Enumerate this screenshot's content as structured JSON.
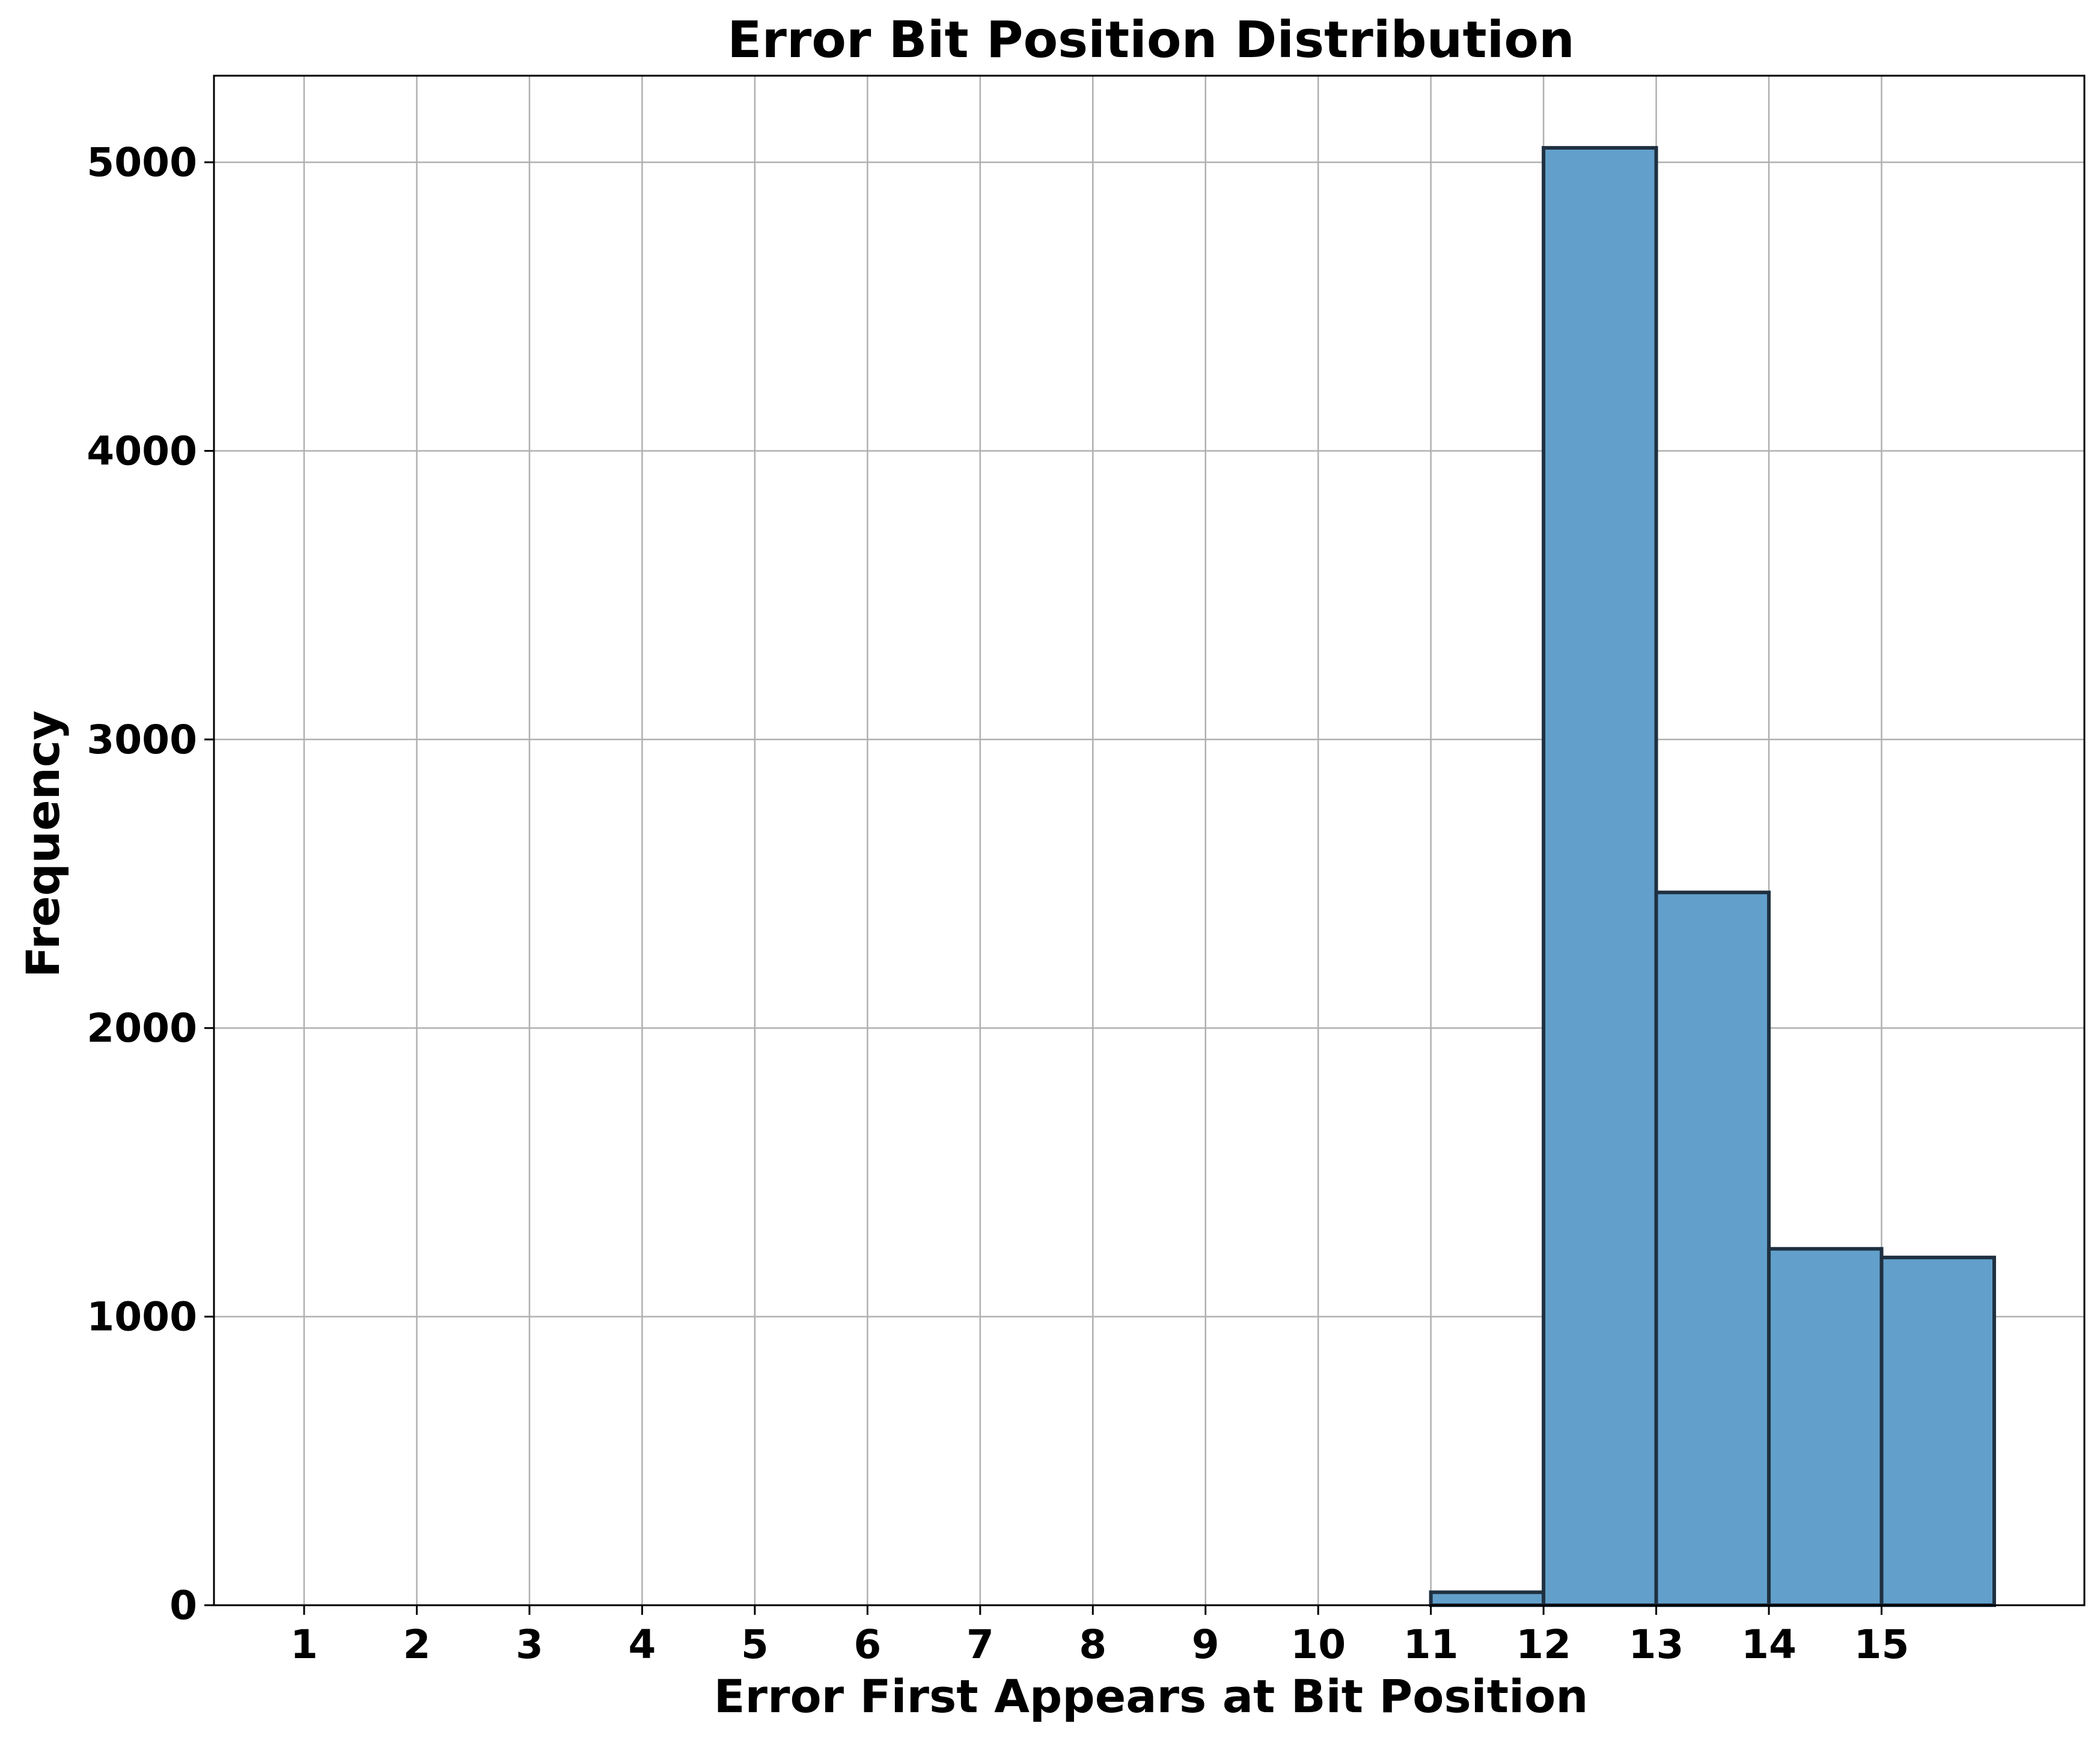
{
  "chart_data": {
    "type": "bar",
    "title": "Error Bit Position Distribution",
    "xlabel": "Error First Appears at Bit Position",
    "ylabel": "Frequency",
    "xlim": [
      0.2,
      16.8
    ],
    "ylim": [
      0,
      5300
    ],
    "x_ticks": [
      1,
      2,
      3,
      4,
      5,
      6,
      7,
      8,
      9,
      10,
      11,
      12,
      13,
      14,
      15
    ],
    "y_ticks": [
      0,
      1000,
      2000,
      3000,
      4000,
      5000
    ],
    "bins": [
      {
        "left": 1,
        "right": 2,
        "value": 0
      },
      {
        "left": 2,
        "right": 3,
        "value": 0
      },
      {
        "left": 3,
        "right": 4,
        "value": 0
      },
      {
        "left": 4,
        "right": 5,
        "value": 0
      },
      {
        "left": 5,
        "right": 6,
        "value": 0
      },
      {
        "left": 6,
        "right": 7,
        "value": 0
      },
      {
        "left": 7,
        "right": 8,
        "value": 0
      },
      {
        "left": 8,
        "right": 9,
        "value": 0
      },
      {
        "left": 9,
        "right": 10,
        "value": 0
      },
      {
        "left": 10,
        "right": 11,
        "value": 0
      },
      {
        "left": 11,
        "right": 12,
        "value": 45
      },
      {
        "left": 12,
        "right": 13,
        "value": 5050
      },
      {
        "left": 13,
        "right": 14,
        "value": 2470
      },
      {
        "left": 14,
        "right": 15,
        "value": 1235
      },
      {
        "left": 15,
        "right": 16,
        "value": 1205
      }
    ],
    "grid": true,
    "bar_color": "#62a0cb",
    "bar_edge_color": "#1f3040"
  }
}
